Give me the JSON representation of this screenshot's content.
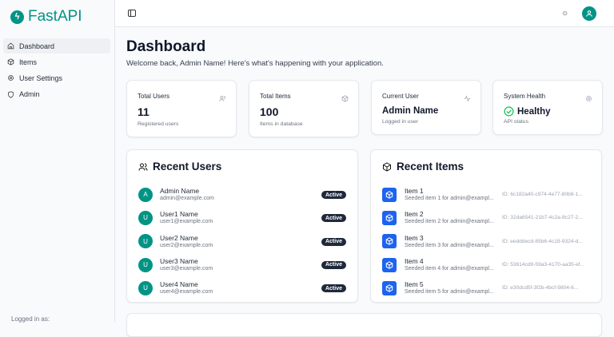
{
  "app": {
    "name": "FastAPI",
    "accent": "#009485"
  },
  "sidebar": {
    "items": [
      {
        "label": "Dashboard",
        "icon": "home-icon",
        "active": true
      },
      {
        "label": "Items",
        "icon": "box-icon"
      },
      {
        "label": "User Settings",
        "icon": "gear-icon"
      },
      {
        "label": "Admin",
        "icon": "shield-icon"
      }
    ],
    "footer": "Logged in as:"
  },
  "page": {
    "title": "Dashboard",
    "welcome": "Welcome back, Admin Name! Here's what's happening with your application."
  },
  "stats": [
    {
      "label": "Total Users",
      "value": "11",
      "sub": "Registered users",
      "icon": "users-icon"
    },
    {
      "label": "Total Items",
      "value": "100",
      "sub": "Items in database",
      "icon": "box-icon"
    },
    {
      "label": "Current User",
      "value": "Admin Name",
      "sub": "Logged in user",
      "icon": "activity-icon"
    },
    {
      "label": "System Health",
      "value": "Healthy",
      "sub": "API status",
      "icon": "gear-icon"
    }
  ],
  "recent_users": {
    "title": "Recent Users",
    "users": [
      {
        "initial": "A",
        "name": "Admin Name",
        "email": "admin@example.com",
        "status": "Active"
      },
      {
        "initial": "U",
        "name": "User1 Name",
        "email": "user1@example.com",
        "status": "Active"
      },
      {
        "initial": "U",
        "name": "User2 Name",
        "email": "user2@example.com",
        "status": "Active"
      },
      {
        "initial": "U",
        "name": "User3 Name",
        "email": "user3@example.com",
        "status": "Active"
      },
      {
        "initial": "U",
        "name": "User4 Name",
        "email": "user4@example.com",
        "status": "Active"
      }
    ]
  },
  "recent_items": {
    "title": "Recent Items",
    "items": [
      {
        "name": "Item 1",
        "desc": "Seeded item 1 for admin@exampl...",
        "id": "ID: 6c182a40-c974-4e77-80b8-1..."
      },
      {
        "name": "Item 2",
        "desc": "Seeded item 2 for admin@exampl...",
        "id": "ID: 32da6541-21b7-4c2a-8c27-2..."
      },
      {
        "name": "Item 3",
        "desc": "Seeded item 3 for admin@exampl...",
        "id": "ID: eedddecd-85b6-4c18-9324-d..."
      },
      {
        "name": "Item 4",
        "desc": "Seeded item 4 for admin@exampl...",
        "id": "ID: 53614cd9-59a3-4170-aa35-ef..."
      },
      {
        "name": "Item 5",
        "desc": "Seeded item 5 for admin@exampl...",
        "id": "ID: e30dcd5f-3f2b-4bcf-9804-6..."
      }
    ]
  }
}
